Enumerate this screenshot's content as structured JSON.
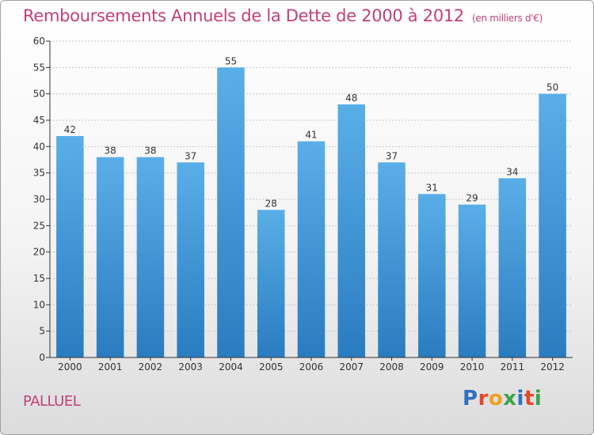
{
  "title": "Remboursements Annuels de la Dette de 2000 à 2012",
  "unit_note": "(en milliers d'€)",
  "commune": "PALLUEL",
  "logo": {
    "text": "Proxiti",
    "letter_colors": [
      "#2f6fbf",
      "#e8462a",
      "#f0a020",
      "#3aa34a",
      "#2f6fbf",
      "#e8462a",
      "#3aa34a"
    ]
  },
  "colors": {
    "title": "#c0407a",
    "bar_top": "#5aaee8",
    "bar_bottom": "#2a7cc0",
    "axis": "#333333",
    "grid": "#c8c8c8"
  },
  "chart_data": {
    "type": "bar",
    "categories": [
      "2000",
      "2001",
      "2002",
      "2003",
      "2004",
      "2005",
      "2006",
      "2007",
      "2008",
      "2009",
      "2010",
      "2011",
      "2012"
    ],
    "values": [
      42,
      38,
      38,
      37,
      55,
      28,
      41,
      48,
      37,
      31,
      29,
      34,
      50
    ],
    "ylim": [
      0,
      60
    ],
    "yticks": [
      0,
      5,
      10,
      15,
      20,
      25,
      30,
      35,
      40,
      45,
      50,
      55,
      60
    ],
    "grid": true,
    "data_labels": true,
    "legend": false
  }
}
